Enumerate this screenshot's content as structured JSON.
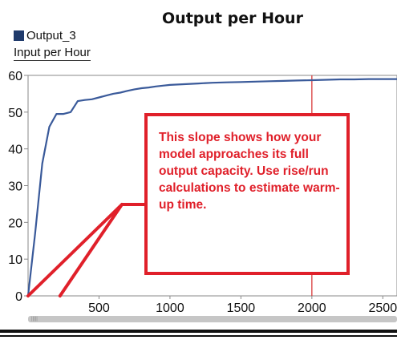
{
  "chart_data": {
    "type": "line",
    "title": "Output per Hour",
    "xlabel": "",
    "ylabel": "",
    "xlim": [
      0,
      2600
    ],
    "ylim": [
      0,
      60
    ],
    "xticks": [
      500,
      1000,
      1500,
      2000,
      2500
    ],
    "yticks": [
      0,
      10,
      20,
      30,
      40,
      50,
      60
    ],
    "grid": false,
    "legend": "top-left",
    "series": [
      {
        "name": "Output_3",
        "color": "#3a5a9a",
        "x": [
          0,
          50,
          100,
          150,
          200,
          250,
          300,
          350,
          400,
          450,
          500,
          550,
          600,
          650,
          700,
          750,
          800,
          850,
          900,
          950,
          1000,
          1100,
          1200,
          1300,
          1400,
          1500,
          1600,
          1700,
          1800,
          1900,
          2000,
          2100,
          2200,
          2300,
          2400,
          2500,
          2600
        ],
        "values": [
          0,
          17,
          36,
          46,
          49.5,
          49.5,
          50,
          53,
          53.3,
          53.5,
          54,
          54.5,
          55,
          55.3,
          55.8,
          56.2,
          56.5,
          56.7,
          57,
          57.2,
          57.4,
          57.6,
          57.8,
          58,
          58.1,
          58.2,
          58.3,
          58.4,
          58.5,
          58.6,
          58.7,
          58.8,
          58.9,
          58.9,
          59,
          59,
          59
        ]
      }
    ],
    "marker_line": {
      "x": 2000,
      "color": "#d83a3a"
    }
  },
  "header": {
    "title": "Output per Hour"
  },
  "legend": {
    "series_label": "Output_3",
    "swatch_color": "#1f3a6b"
  },
  "x_axis_label": "Input per Hour",
  "callout": {
    "text": "This slope shows how your model approaches its  full output capacity. Use rise/run calculations to estimate warm-up time.",
    "color": "#e0202a",
    "pointer_target_x": [
      0,
      225
    ]
  },
  "scrollbar": {
    "grip": "|||||"
  }
}
